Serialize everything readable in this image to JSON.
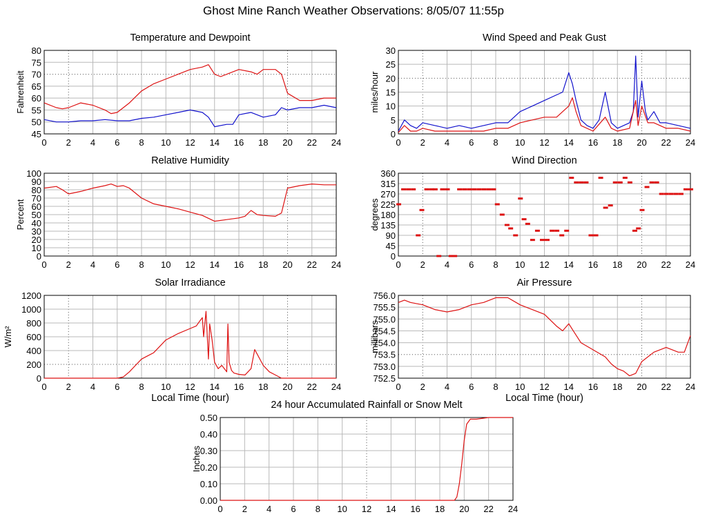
{
  "page_title": "Ghost Mine Ranch Weather Observations: 8/05/07 11:55p",
  "colors": {
    "red": "#dd1111",
    "blue": "#1111cc",
    "grid": "#b8b8b8",
    "dotted": "#555555"
  },
  "chart_data": [
    {
      "id": "temp",
      "type": "line",
      "title": "Temperature and Dewpoint",
      "ylabel": "Fahrenheit",
      "xlabel": "",
      "xlim": [
        0,
        24
      ],
      "ylim": [
        45,
        80
      ],
      "xticks": [
        0,
        2,
        4,
        6,
        8,
        10,
        12,
        14,
        16,
        18,
        20,
        22,
        24
      ],
      "yticks": [
        "45",
        "50",
        "55",
        "60",
        "65",
        "70",
        "75",
        "80"
      ],
      "series": [
        {
          "color": "red",
          "x": [
            0,
            1,
            1.5,
            2,
            3,
            4,
            5,
            5.5,
            6,
            6.5,
            7,
            8,
            9,
            10,
            11,
            12,
            13,
            13.5,
            14,
            14.5,
            15,
            16,
            17,
            17.5,
            18,
            19,
            19.5,
            20,
            21,
            22,
            23,
            24
          ],
          "y": [
            58,
            56,
            55.5,
            56,
            58,
            57,
            55,
            53.5,
            54,
            56,
            58,
            63,
            66,
            68,
            70,
            72,
            73,
            74,
            70,
            69,
            70,
            72,
            71,
            70,
            72,
            72,
            70,
            62,
            59,
            59,
            60,
            60
          ]
        },
        {
          "color": "blue",
          "x": [
            0,
            1,
            2,
            3,
            4,
            5,
            6,
            7,
            8,
            9,
            10,
            11,
            12,
            13,
            13.5,
            14,
            15,
            15.5,
            16,
            17,
            18,
            19,
            19.5,
            20,
            21,
            22,
            23,
            24
          ],
          "y": [
            51,
            50,
            50,
            50.5,
            50.5,
            51,
            50.5,
            50.5,
            51.5,
            52,
            53,
            54,
            55,
            54,
            52,
            48,
            49,
            49,
            53,
            54,
            52,
            53,
            56,
            55,
            56,
            56,
            57,
            56
          ]
        }
      ]
    },
    {
      "id": "wind",
      "type": "line",
      "title": "Wind Speed and Peak Gust",
      "ylabel": "miles/hour",
      "xlabel": "",
      "xlim": [
        0,
        24
      ],
      "ylim": [
        0,
        30
      ],
      "xticks": [
        0,
        2,
        4,
        6,
        8,
        10,
        12,
        14,
        16,
        18,
        20,
        22,
        24
      ],
      "yticks": [
        "0",
        "5",
        "10",
        "15",
        "20",
        "25",
        "30"
      ],
      "series": [
        {
          "color": "blue",
          "x": [
            0,
            0.5,
            1,
            1.5,
            2,
            3,
            4,
            5,
            6,
            7,
            8,
            9,
            10,
            11,
            12,
            13,
            13.5,
            14,
            14.3,
            14.6,
            15,
            15.5,
            16,
            16.5,
            17,
            17.5,
            18,
            18.5,
            19,
            19.3,
            19.5,
            19.7,
            20,
            20.3,
            20.5,
            21,
            21.5,
            22,
            23,
            24
          ],
          "y": [
            1,
            5,
            3,
            2,
            4,
            3,
            2,
            3,
            2,
            3,
            4,
            4,
            8,
            10,
            12,
            14,
            15,
            22,
            18,
            12,
            5,
            3,
            2,
            5,
            15,
            4,
            2,
            3,
            4,
            8,
            28,
            6,
            19,
            8,
            5,
            8,
            4,
            4,
            3,
            2
          ]
        },
        {
          "color": "red",
          "x": [
            0,
            0.5,
            1,
            1.5,
            2,
            3,
            4,
            5,
            6,
            7,
            8,
            9,
            10,
            11,
            12,
            13,
            14,
            14.3,
            14.6,
            15,
            16,
            17,
            17.5,
            18,
            19,
            19.5,
            19.7,
            20,
            20.5,
            21,
            22,
            23,
            24
          ],
          "y": [
            0.5,
            3,
            1,
            1,
            2,
            1,
            1,
            1,
            1,
            1,
            2,
            2,
            4,
            5,
            6,
            6,
            10,
            13,
            8,
            3,
            1,
            6,
            2,
            1,
            2,
            12,
            3,
            10,
            4,
            4,
            2,
            2,
            1
          ]
        }
      ]
    },
    {
      "id": "rh",
      "type": "line",
      "title": "Relative Humidity",
      "ylabel": "Percent",
      "xlabel": "",
      "xlim": [
        0,
        24
      ],
      "ylim": [
        0,
        100
      ],
      "xticks": [
        0,
        2,
        4,
        6,
        8,
        10,
        12,
        14,
        16,
        18,
        20,
        22,
        24
      ],
      "yticks": [
        "0",
        "10",
        "20",
        "30",
        "40",
        "50",
        "60",
        "70",
        "80",
        "90",
        "100"
      ],
      "series": [
        {
          "color": "red",
          "x": [
            0,
            1,
            1.5,
            2,
            3,
            4,
            5,
            5.5,
            6,
            6.5,
            7,
            8,
            9,
            10,
            11,
            12,
            13,
            14,
            15,
            16,
            16.5,
            17,
            17.5,
            18,
            19,
            19.5,
            20,
            21,
            22,
            23,
            24
          ],
          "y": [
            82,
            84,
            80,
            75,
            78,
            82,
            85,
            87,
            84,
            85,
            82,
            70,
            63,
            60,
            57,
            53,
            49,
            42,
            44,
            46,
            48,
            55,
            50,
            49,
            48,
            52,
            82,
            85,
            87,
            86,
            86
          ]
        }
      ]
    },
    {
      "id": "wdir",
      "type": "scatter",
      "title": "Wind Direction",
      "ylabel": "degrees",
      "xlabel": "",
      "xlim": [
        0,
        24
      ],
      "ylim": [
        0,
        360
      ],
      "xticks": [
        0,
        2,
        4,
        6,
        8,
        10,
        12,
        14,
        16,
        18,
        20,
        22,
        24
      ],
      "yticks": [
        "0",
        "45",
        "90",
        "135",
        "180",
        "225",
        "270",
        "315",
        "360"
      ],
      "series": [
        {
          "color": "red",
          "x": [
            0,
            0.4,
            0.8,
            1.2,
            1.6,
            1.9,
            2.3,
            2.7,
            3.0,
            3.3,
            3.6,
            4.0,
            4.3,
            4.6,
            5.0,
            5.4,
            5.8,
            6.2,
            6.6,
            7.0,
            7.4,
            7.8,
            8.1,
            8.5,
            8.9,
            9.2,
            9.6,
            10.0,
            10.3,
            10.6,
            11.0,
            11.4,
            11.8,
            12.2,
            12.6,
            13.0,
            13.4,
            13.8,
            14.2,
            14.6,
            15.0,
            15.4,
            15.8,
            16.2,
            16.6,
            17.0,
            17.4,
            17.8,
            18.2,
            18.6,
            19.0,
            19.4,
            19.7,
            20.0,
            20.4,
            20.8,
            21.2,
            21.6,
            22.0,
            22.4,
            22.8,
            23.2,
            23.6,
            24.0
          ],
          "y": [
            225,
            290,
            290,
            290,
            90,
            200,
            290,
            290,
            290,
            0,
            290,
            290,
            0,
            0,
            290,
            290,
            290,
            290,
            290,
            290,
            290,
            290,
            225,
            180,
            135,
            120,
            90,
            250,
            160,
            140,
            70,
            110,
            70,
            70,
            110,
            110,
            90,
            110,
            340,
            320,
            320,
            320,
            90,
            90,
            340,
            210,
            220,
            320,
            320,
            340,
            320,
            110,
            120,
            200,
            300,
            320,
            320,
            270,
            270,
            270,
            270,
            270,
            290,
            290
          ]
        }
      ]
    },
    {
      "id": "solar",
      "type": "line",
      "title": "Solar Irradiance",
      "ylabel": "W/m²",
      "xlabel": "Local Time (hour)",
      "xlim": [
        0,
        24
      ],
      "ylim": [
        0,
        1300
      ],
      "xticks": [
        0,
        2,
        4,
        6,
        8,
        10,
        12,
        14,
        16,
        18,
        20,
        22,
        24
      ],
      "yticks": [
        "0",
        "200",
        "400",
        "600",
        "800",
        "1000",
        "1200"
      ],
      "series": [
        {
          "color": "red",
          "x": [
            0,
            6,
            6.5,
            7,
            7.5,
            8,
            8.5,
            9,
            10,
            11,
            12,
            12.5,
            12.8,
            13,
            13.1,
            13.3,
            13.5,
            13.6,
            13.8,
            14,
            14.3,
            14.6,
            15,
            15.1,
            15.2,
            15.4,
            15.6,
            16,
            16.5,
            17,
            17.3,
            17.5,
            18,
            18.5,
            19,
            19.5,
            20,
            24
          ],
          "y": [
            0,
            0,
            20,
            100,
            200,
            300,
            350,
            400,
            600,
            700,
            780,
            820,
            900,
            950,
            650,
            1050,
            300,
            850,
            600,
            250,
            150,
            200,
            100,
            850,
            250,
            120,
            80,
            60,
            50,
            150,
            450,
            380,
            200,
            100,
            50,
            0,
            0,
            0
          ]
        }
      ]
    },
    {
      "id": "press",
      "type": "line",
      "title": "Air Pressure",
      "ylabel": "millibars",
      "xlabel": "Local Time (hour)",
      "xlim": [
        0,
        24
      ],
      "ylim": [
        752.5,
        756.0
      ],
      "xticks": [
        0,
        2,
        4,
        6,
        8,
        10,
        12,
        14,
        16,
        18,
        20,
        22,
        24
      ],
      "yticks": [
        "752.5",
        "753.0",
        "753.5",
        "754.0",
        "754.5",
        "755.0",
        "755.5",
        "756.0"
      ],
      "series": [
        {
          "color": "red",
          "x": [
            0,
            0.5,
            1,
            2,
            3,
            4,
            5,
            6,
            7,
            8,
            9,
            10,
            11,
            12,
            13,
            13.5,
            14,
            14.5,
            15,
            16,
            17,
            17.5,
            18,
            18.5,
            19,
            19.5,
            20,
            21,
            22,
            23,
            23.5,
            24
          ],
          "y": [
            755.7,
            755.8,
            755.7,
            755.6,
            755.4,
            755.3,
            755.4,
            755.6,
            755.7,
            755.9,
            755.9,
            755.6,
            755.4,
            755.2,
            754.7,
            754.5,
            754.8,
            754.4,
            754.0,
            753.7,
            753.4,
            753.1,
            752.9,
            752.8,
            752.6,
            752.7,
            753.2,
            753.6,
            753.8,
            753.6,
            753.6,
            754.3
          ]
        }
      ]
    },
    {
      "id": "rain",
      "type": "line",
      "title": "24 hour Accumulated Rainfall or Snow Melt",
      "ylabel": "Inches",
      "xlabel": "",
      "xlim": [
        0,
        24
      ],
      "ylim": [
        0,
        0.5
      ],
      "xticks": [
        0,
        2,
        4,
        6,
        8,
        10,
        12,
        14,
        16,
        18,
        20,
        22,
        24
      ],
      "yticks": [
        "0.00",
        "0.10",
        "0.20",
        "0.30",
        "0.40",
        "0.50"
      ],
      "series": [
        {
          "color": "red",
          "x": [
            0,
            19.2,
            19.4,
            19.6,
            19.8,
            20.0,
            20.2,
            20.5,
            21,
            22,
            24
          ],
          "y": [
            0,
            0,
            0.02,
            0.1,
            0.22,
            0.36,
            0.46,
            0.49,
            0.49,
            0.5,
            0.5
          ]
        }
      ]
    }
  ]
}
